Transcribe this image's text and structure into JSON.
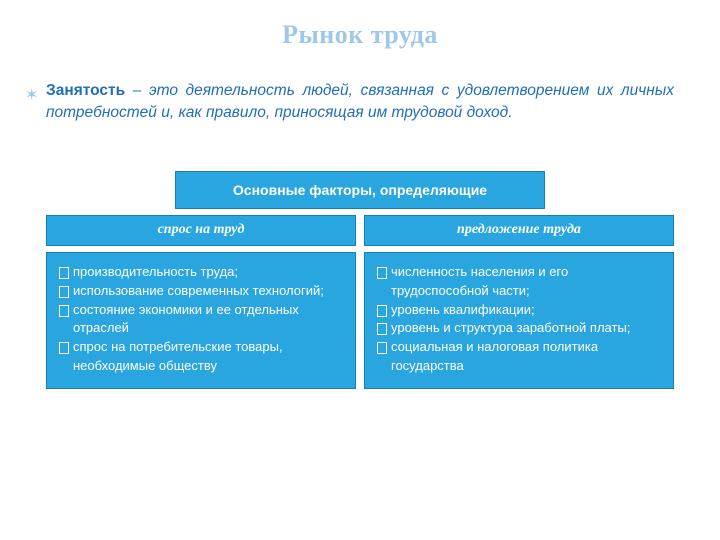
{
  "title": "Рынок труда",
  "intro": {
    "term": "Занятость",
    "rest": " – это деятельность людей, связанная с удовлетворением их личных потребностей и, как правило, приносящая им трудовой доход."
  },
  "diagram": {
    "header": "Основные факторы, определяющие",
    "columns": [
      {
        "subtitle": "спрос на труд",
        "items": [
          "производительность труда;",
          "использование современных технологий;",
          "состояние экономики и ее отдельных отраслей",
          "спрос на потребительские товары, необходимые обществу"
        ]
      },
      {
        "subtitle": "предложение труда",
        "items": [
          "численность населения и его трудоспособной части;",
          "уровень квалификации;",
          "уровень и структура заработной платы;",
          "социальная и налоговая политика государства"
        ]
      }
    ]
  },
  "colors": {
    "title_color": "#9fc7e8",
    "intro_color": "#1f6fb7",
    "box_bg": "#29a6df",
    "box_border": "#1280b5",
    "box_text": "#ffffff",
    "page_bg": "#ffffff"
  }
}
